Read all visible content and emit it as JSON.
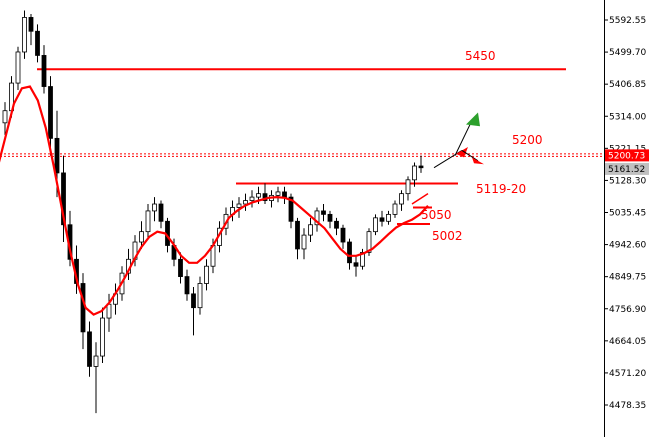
{
  "chart_data": {
    "type": "candlestick",
    "title": "",
    "xlabel": "",
    "ylabel": "",
    "ylim": [
      4435,
      5640
    ],
    "y_ticks": [
      "5592.55",
      "5499.70",
      "5406.85",
      "5314.00",
      "5221.15",
      "5128.30",
      "5035.45",
      "4942.60",
      "4849.75",
      "4756.90",
      "4664.05",
      "4571.20",
      "4478.35"
    ],
    "price_badges": [
      {
        "label": "5200.73",
        "value": 5200.73,
        "bg": "#ff0000",
        "fg": "#ffffff"
      },
      {
        "label": "5161.52",
        "value": 5161.52,
        "bg": "#c0c0c0",
        "fg": "#000000"
      }
    ],
    "grid": false,
    "candle_up_color": "#ffffff",
    "candle_down_color": "#000000",
    "candles": [
      [
        5295,
        5355,
        5260,
        5330
      ],
      [
        5330,
        5430,
        5310,
        5410
      ],
      [
        5410,
        5515,
        5390,
        5500
      ],
      [
        5500,
        5620,
        5480,
        5600
      ],
      [
        5600,
        5610,
        5520,
        5560
      ],
      [
        5560,
        5580,
        5470,
        5490
      ],
      [
        5490,
        5520,
        5380,
        5400
      ],
      [
        5400,
        5430,
        5200,
        5250
      ],
      [
        5250,
        5330,
        5080,
        5150
      ],
      [
        5150,
        5200,
        4950,
        5000
      ],
      [
        5000,
        5040,
        4880,
        4900
      ],
      [
        4900,
        4940,
        4800,
        4830
      ],
      [
        4830,
        4860,
        4640,
        4690
      ],
      [
        4690,
        4720,
        4560,
        4590
      ],
      [
        4590,
        4660,
        4455,
        4620
      ],
      [
        4620,
        4760,
        4600,
        4730
      ],
      [
        4730,
        4800,
        4690,
        4770
      ],
      [
        4770,
        4830,
        4740,
        4800
      ],
      [
        4800,
        4880,
        4780,
        4860
      ],
      [
        4860,
        4930,
        4840,
        4900
      ],
      [
        4900,
        4970,
        4880,
        4950
      ],
      [
        4950,
        5010,
        4930,
        4980
      ],
      [
        4980,
        5060,
        4960,
        5040
      ],
      [
        5040,
        5080,
        5010,
        5060
      ],
      [
        5060,
        5070,
        4990,
        5010
      ],
      [
        5010,
        5020,
        4920,
        4940
      ],
      [
        4940,
        4960,
        4880,
        4900
      ],
      [
        4900,
        4920,
        4830,
        4850
      ],
      [
        4850,
        4870,
        4780,
        4800
      ],
      [
        4800,
        4820,
        4680,
        4760
      ],
      [
        4760,
        4850,
        4740,
        4830
      ],
      [
        4830,
        4900,
        4810,
        4880
      ],
      [
        4880,
        4960,
        4860,
        4940
      ],
      [
        4940,
        5010,
        4920,
        4990
      ],
      [
        4990,
        5050,
        4970,
        5030
      ],
      [
        5030,
        5070,
        5010,
        5050
      ],
      [
        5050,
        5080,
        5020,
        5060
      ],
      [
        5060,
        5090,
        5040,
        5070
      ],
      [
        5070,
        5100,
        5050,
        5080
      ],
      [
        5080,
        5110,
        5060,
        5090
      ],
      [
        5090,
        5120,
        5060,
        5070
      ],
      [
        5070,
        5100,
        5050,
        5085
      ],
      [
        5085,
        5110,
        5065,
        5095
      ],
      [
        5095,
        5110,
        5060,
        5080
      ],
      [
        5080,
        5090,
        4990,
        5010
      ],
      [
        5010,
        5020,
        4900,
        4930
      ],
      [
        4930,
        4990,
        4900,
        4970
      ],
      [
        4970,
        5020,
        4950,
        5000
      ],
      [
        5000,
        5050,
        4980,
        5040
      ],
      [
        5040,
        5060,
        5010,
        5030
      ],
      [
        5030,
        5040,
        4990,
        5010
      ],
      [
        5010,
        5020,
        4970,
        4990
      ],
      [
        4990,
        5000,
        4930,
        4950
      ],
      [
        4950,
        4960,
        4870,
        4890
      ],
      [
        4890,
        4910,
        4850,
        4880
      ],
      [
        4880,
        4930,
        4870,
        4920
      ],
      [
        4920,
        4990,
        4910,
        4980
      ],
      [
        4980,
        5030,
        4970,
        5020
      ],
      [
        5020,
        5040,
        4995,
        5010
      ],
      [
        5010,
        5040,
        5000,
        5030
      ],
      [
        5030,
        5070,
        5020,
        5060
      ],
      [
        5060,
        5100,
        5040,
        5090
      ],
      [
        5090,
        5140,
        5070,
        5130
      ],
      [
        5130,
        5180,
        5110,
        5170
      ],
      [
        5170,
        5200,
        5150,
        5165
      ]
    ],
    "ma_values": [
      5170,
      5260,
      5350,
      5395,
      5400,
      5360,
      5280,
      5170,
      5050,
      4930,
      4830,
      4760,
      4740,
      4750,
      4775,
      4810,
      4850,
      4895,
      4935,
      4965,
      4980,
      4975,
      4945,
      4910,
      4890,
      4890,
      4910,
      4940,
      4980,
      5020,
      5040,
      5055,
      5065,
      5072,
      5078,
      5080,
      5078,
      5070,
      5050,
      5030,
      5010,
      4990,
      4960,
      4930,
      4910,
      4910,
      4918,
      4930,
      4950,
      4972,
      4992,
      5005,
      5015,
      5030,
      5055
    ],
    "horizontal_lines": [
      {
        "value": 5450,
        "from_index": 37,
        "to_index": 588
      },
      {
        "value": 5205,
        "from_index": 0,
        "to_index": 605,
        "dashed": true
      },
      {
        "value": 5198,
        "from_index": 0,
        "to_index": 605,
        "dashed": true
      },
      {
        "value": 5119.5,
        "from_index": 236,
        "to_index": 458
      },
      {
        "value": 5050,
        "from_index": 413,
        "to_index": 432
      },
      {
        "value": 5002,
        "from_index": 397,
        "to_index": 430
      }
    ],
    "annotations": [
      {
        "text": "5450",
        "value": 5450
      },
      {
        "text": "5200",
        "value": 5200
      },
      {
        "text": "5119-20",
        "value": 5119
      },
      {
        "text": "5050",
        "value": 5050
      },
      {
        "text": "5002",
        "value": 5002
      }
    ]
  }
}
